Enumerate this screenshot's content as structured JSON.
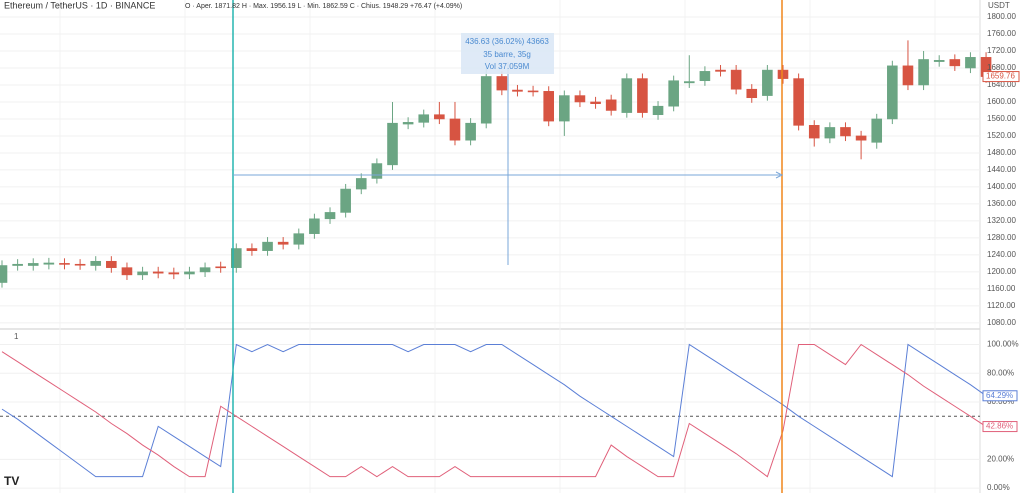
{
  "header": {
    "symbol": "Ethereum / TetherUS · 1D · BINANCE",
    "ohlc": "O · Aper. 1871.82 H · Max. 1956.19 L · Min. 1862.59 C · Chius. 1948.29 +76.47 (+4.09%)",
    "currency": "USDT",
    "pane_label": "1"
  },
  "measure": [
    "436.63 (36.02%) 43663",
    "35 barre, 35g",
    "Vol 37.059M"
  ],
  "chart_data": [
    {
      "type": "candlestick",
      "up_color": "#6ba583",
      "down_color": "#d75442",
      "open": [
        1175,
        1215,
        1215,
        1218,
        1220,
        1218,
        1215,
        1225,
        1210,
        1193,
        1200,
        1198,
        1195,
        1200,
        1212,
        1210,
        1255,
        1250,
        1270,
        1265,
        1290,
        1325,
        1340,
        1395,
        1420,
        1452,
        1548,
        1552,
        1570,
        1560,
        1510,
        1550,
        1660,
        1628,
        1626,
        1625,
        1555,
        1615,
        1600,
        1605,
        1575,
        1655,
        1570,
        1590,
        1645,
        1650,
        1675,
        1675,
        1630,
        1615,
        1675,
        1655,
        1545,
        1515,
        1540,
        1520,
        1505,
        1560,
        1685,
        1640,
        1695,
        1700,
        1680,
        1705
      ],
      "high": [
        1227,
        1230,
        1232,
        1233,
        1232,
        1230,
        1237,
        1237,
        1222,
        1212,
        1212,
        1210,
        1212,
        1222,
        1224,
        1267,
        1267,
        1282,
        1282,
        1302,
        1337,
        1352,
        1407,
        1432,
        1467,
        1600,
        1564,
        1582,
        1600,
        1600,
        1562,
        1680,
        1672,
        1640,
        1638,
        1637,
        1627,
        1627,
        1612,
        1617,
        1667,
        1667,
        1602,
        1662,
        1710,
        1684,
        1687,
        1687,
        1642,
        1687,
        1687,
        1667,
        1557,
        1552,
        1552,
        1532,
        1572,
        1697,
        1745,
        1720,
        1710,
        1712,
        1717,
        1717
      ],
      "low": [
        1163,
        1203,
        1203,
        1206,
        1206,
        1205,
        1203,
        1198,
        1181,
        1181,
        1185,
        1183,
        1183,
        1188,
        1198,
        1198,
        1238,
        1238,
        1253,
        1253,
        1278,
        1313,
        1328,
        1383,
        1408,
        1440,
        1536,
        1540,
        1548,
        1498,
        1498,
        1538,
        1616,
        1613,
        1613,
        1543,
        1520,
        1588,
        1584,
        1568,
        1563,
        1563,
        1558,
        1578,
        1633,
        1638,
        1660,
        1618,
        1598,
        1603,
        1643,
        1533,
        1495,
        1503,
        1508,
        1465,
        1490,
        1548,
        1628,
        1628,
        1683,
        1673,
        1668,
        1645
      ],
      "close": [
        1215,
        1218,
        1220,
        1221,
        1218,
        1217,
        1225,
        1210,
        1193,
        1200,
        1197,
        1195,
        1200,
        1210,
        1210,
        1255,
        1250,
        1270,
        1265,
        1290,
        1325,
        1340,
        1395,
        1420,
        1455,
        1550,
        1552,
        1570,
        1560,
        1510,
        1550,
        1660,
        1628,
        1625,
        1625,
        1555,
        1615,
        1600,
        1596,
        1580,
        1655,
        1575,
        1590,
        1650,
        1648,
        1672,
        1672,
        1630,
        1610,
        1675,
        1655,
        1545,
        1515,
        1540,
        1520,
        1510,
        1560,
        1685,
        1640,
        1700,
        1698,
        1685,
        1705,
        1659.76
      ],
      "ylim": [
        1075,
        1840
      ],
      "yticks": [
        {
          "value": 1080,
          "label": "1080.00"
        },
        {
          "value": 1120,
          "label": "1120.00"
        },
        {
          "value": 1160,
          "label": "1160.00"
        },
        {
          "value": 1200,
          "label": "1200.00"
        },
        {
          "value": 1240,
          "label": "1240.00"
        },
        {
          "value": 1280,
          "label": "1280.00"
        },
        {
          "value": 1320,
          "label": "1320.00"
        },
        {
          "value": 1360,
          "label": "1360.00"
        },
        {
          "value": 1400,
          "label": "1400.00"
        },
        {
          "value": 1440,
          "label": "1440.00"
        },
        {
          "value": 1480,
          "label": "1480.00"
        },
        {
          "value": 1520,
          "label": "1520.00"
        },
        {
          "value": 1560,
          "label": "1560.00"
        },
        {
          "value": 1600,
          "label": "1600.00"
        },
        {
          "value": 1640,
          "label": "1640.00"
        },
        {
          "value": 1680,
          "label": "1680.00"
        },
        {
          "value": 1720,
          "label": "1720.00"
        },
        {
          "value": 1760,
          "label": "1760.00"
        },
        {
          "value": 1800,
          "label": "1800.00"
        }
      ],
      "grid": true
    },
    {
      "type": "line",
      "ylim": [
        -2,
        108
      ],
      "reference_line": 50,
      "yticks": [
        {
          "value": 0,
          "label": "0.00%"
        },
        {
          "value": 20,
          "label": "20.00%"
        },
        {
          "value": 60,
          "label": "60.00%"
        },
        {
          "value": 80,
          "label": "80.00%"
        },
        {
          "value": 100,
          "label": "100.00%"
        }
      ],
      "series": [
        {
          "color": "#5b7fd6",
          "end_label": "64.29%",
          "values": [
            55,
            48,
            40,
            32,
            24,
            16,
            8,
            8,
            8,
            8,
            43,
            36,
            29,
            22,
            15,
            100,
            95,
            100,
            95,
            100,
            100,
            100,
            100,
            100,
            100,
            100,
            95,
            100,
            100,
            100,
            95,
            100,
            100,
            93,
            86,
            79,
            72,
            64,
            57,
            50,
            43,
            36,
            29,
            22,
            100,
            93,
            86,
            79,
            72,
            65,
            58,
            50,
            43,
            36,
            29,
            22,
            15,
            8,
            100,
            93,
            86,
            79,
            72,
            64.29
          ]
        },
        {
          "color": "#e0607a",
          "end_label": "42.86%",
          "values": [
            95,
            88,
            81,
            74,
            67,
            60,
            53,
            45,
            38,
            30,
            23,
            15,
            8,
            8,
            57,
            50,
            43,
            36,
            29,
            22,
            15,
            8,
            8,
            15,
            8,
            15,
            8,
            8,
            8,
            15,
            8,
            8,
            8,
            8,
            8,
            8,
            8,
            8,
            8,
            30,
            22,
            15,
            8,
            8,
            45,
            38,
            31,
            24,
            16,
            8,
            40,
            100,
            100,
            93,
            86,
            100,
            93,
            86,
            79,
            71,
            64,
            57,
            50,
            42.86
          ]
        }
      ],
      "grid": true
    }
  ]
}
